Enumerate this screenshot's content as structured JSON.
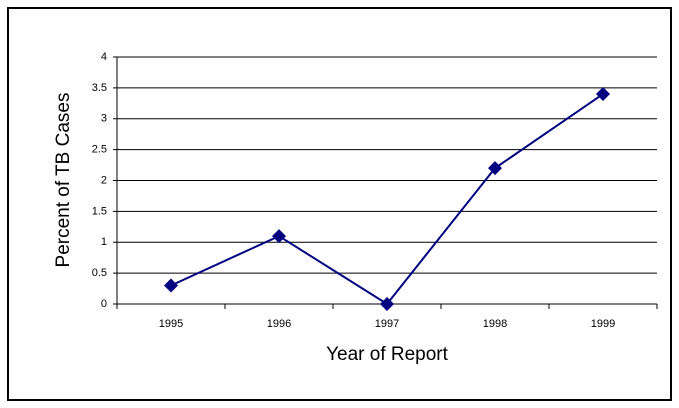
{
  "chart_data": {
    "type": "line",
    "x_label": "Year of Report",
    "y_label": "Percent of TB Cases",
    "categories": [
      "1995",
      "1996",
      "1997",
      "1998",
      "1999"
    ],
    "values": [
      0.3,
      1.1,
      0,
      2.2,
      3.4
    ],
    "color": "#000080",
    "ylim": [
      0,
      4
    ],
    "yticks": [
      0,
      0.5,
      1,
      1.5,
      2,
      2.5,
      3,
      3.5,
      4
    ],
    "grid": true
  }
}
